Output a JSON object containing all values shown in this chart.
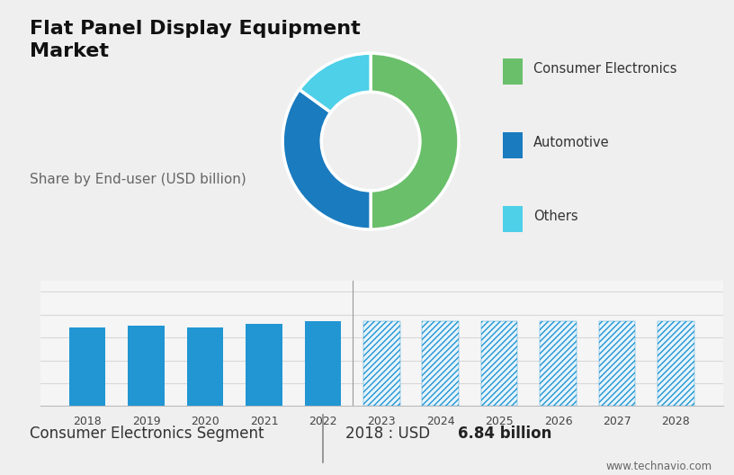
{
  "title": "Flat Panel Display Equipment\nMarket",
  "subtitle": "Share by End-user (USD billion)",
  "title_fontsize": 16,
  "subtitle_fontsize": 11,
  "donut_values": [
    50,
    35,
    15
  ],
  "donut_colors": [
    "#6abf6a",
    "#1a7bbf",
    "#4dd0e8"
  ],
  "donut_labels": [
    "Consumer Electronics",
    "Automotive",
    "Others"
  ],
  "bar_years": [
    2018,
    2019,
    2020,
    2021,
    2022,
    2023,
    2024,
    2025,
    2026,
    2027,
    2028
  ],
  "bar_values": [
    6.84,
    7.05,
    6.9,
    7.15,
    7.45,
    7.45,
    7.45,
    7.45,
    7.45,
    7.45,
    7.45
  ],
  "bar_solid_color": "#2196d3",
  "bar_hatch_color": "#2196d3",
  "bar_hatch_bg": "#e8f4fc",
  "solid_count": 5,
  "top_bg_color": "#cdd8e3",
  "bottom_bg_color": "#efefef",
  "chart_bg_color": "#f5f5f5",
  "divider_color": "#b0b8c0",
  "footer_left": "Consumer Electronics Segment",
  "footer_right_normal": "2018 : USD ",
  "footer_right_bold": "6.84 billion",
  "footer_url": "www.technavio.com",
  "ylim": [
    0,
    11
  ],
  "grid_color": "#d8d8d8"
}
